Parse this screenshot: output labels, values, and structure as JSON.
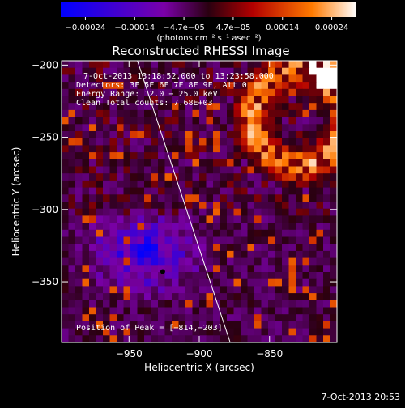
{
  "chart_data": {
    "type": "heatmap",
    "title": "Reconstructed RHESSI Image",
    "xlabel": "Heliocentric X (arcsec)",
    "ylabel": "Heliocentric Y (arcsec)",
    "xlim": [
      -998,
      -802
    ],
    "ylim": [
      -392,
      -197
    ],
    "x_ticks": [
      {
        "value": -950,
        "label": "−950"
      },
      {
        "value": -900,
        "label": "−900"
      },
      {
        "value": -850,
        "label": "−850"
      }
    ],
    "y_ticks": [
      {
        "value": -200,
        "label": "−200"
      },
      {
        "value": -250,
        "label": "−250"
      },
      {
        "value": -300,
        "label": "−300"
      },
      {
        "value": -350,
        "label": "−350"
      }
    ],
    "colorbar": {
      "ticks": [
        "−0.00024",
        "−0.00014",
        "−4.7e−05",
        "4.7e−05",
        "0.00014",
        "0.00024"
      ],
      "unit_label": "(photons cm⁻² s⁻¹ asec⁻²)",
      "range": [
        -0.00024,
        0.00024
      ],
      "colors": [
        "#0000ff",
        "#7a00a8",
        "#2a0010",
        "#b30000",
        "#ff7a00",
        "#ffffff"
      ]
    },
    "annotations": [
      "7-Oct-2013 13:18:52.000 to 13:23:58.000",
      "Detectors: 3F 5F 6F 7F 8F 9F, Att 0",
      "Energy Range: 12.0 − 25.0 keV",
      "Clean    Total counts: 7.68E+03"
    ],
    "peak_label": "Position of Peak = [−814,−203]",
    "peak": {
      "x": -814,
      "y": -203
    },
    "marker": {
      "x": -926,
      "y": -343
    },
    "limb_line": [
      {
        "x": -944,
        "y": -197
      },
      {
        "x": -878,
        "y": -392
      }
    ]
  },
  "timestamp": "7-Oct-2013 20:53"
}
